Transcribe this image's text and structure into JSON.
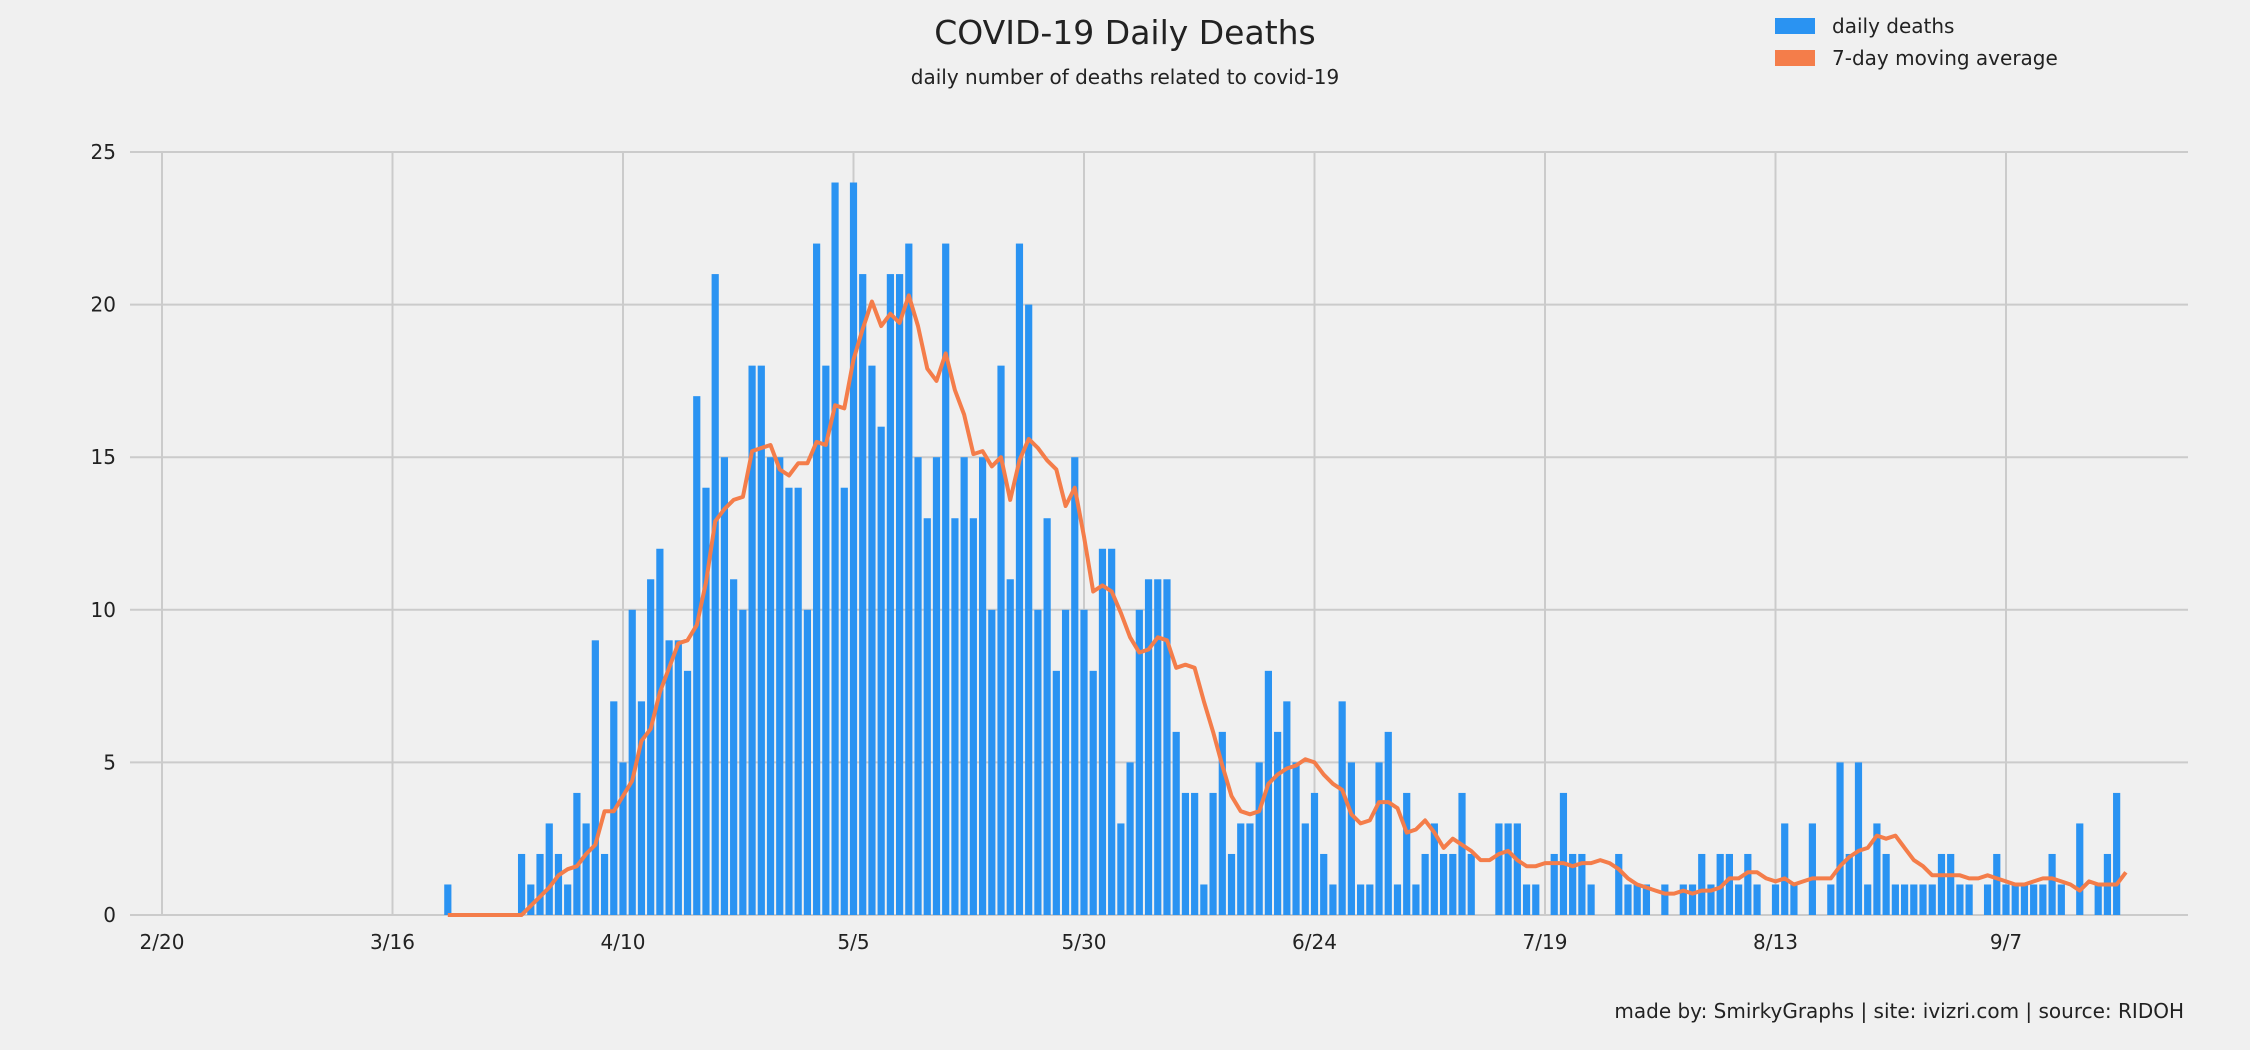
{
  "chart_data": {
    "type": "bar",
    "title": "COVID-19 Daily Deaths",
    "subtitle": "daily number of deaths related to covid-19",
    "xlabel": "",
    "ylabel": "",
    "x_start": "2/20",
    "x_tick_labels": [
      "2/20",
      "3/16",
      "4/10",
      "5/5",
      "5/30",
      "6/24",
      "7/19",
      "8/13",
      "9/7"
    ],
    "y_ticks": [
      0,
      5,
      10,
      15,
      20,
      25
    ],
    "ylim": [
      0,
      25
    ],
    "grid": true,
    "legend_position": "top-right",
    "series": [
      {
        "name": "daily deaths",
        "type": "bar",
        "color": "#2a93f2",
        "values": [
          0,
          0,
          0,
          0,
          0,
          0,
          0,
          0,
          0,
          0,
          0,
          0,
          0,
          0,
          0,
          0,
          0,
          0,
          0,
          0,
          0,
          0,
          0,
          0,
          0,
          0,
          0,
          0,
          0,
          0,
          0,
          1,
          0,
          0,
          0,
          0,
          0,
          0,
          0,
          2,
          1,
          2,
          3,
          2,
          1,
          4,
          3,
          9,
          2,
          7,
          5,
          10,
          7,
          11,
          12,
          9,
          9,
          8,
          17,
          14,
          21,
          15,
          11,
          10,
          18,
          18,
          15,
          15,
          14,
          14,
          10,
          22,
          18,
          24,
          14,
          24,
          21,
          18,
          16,
          21,
          21,
          22,
          15,
          13,
          15,
          22,
          13,
          15,
          13,
          15,
          10,
          18,
          11,
          22,
          20,
          10,
          13,
          8,
          10,
          15,
          10,
          8,
          12,
          12,
          3,
          5,
          10,
          11,
          11,
          11,
          6,
          4,
          4,
          1,
          4,
          6,
          2,
          3,
          3,
          5,
          8,
          6,
          7,
          5,
          3,
          4,
          2,
          1,
          7,
          5,
          1,
          1,
          5,
          6,
          1,
          4,
          1,
          2,
          3,
          2,
          2,
          4,
          2,
          0,
          0,
          3,
          3,
          3,
          1,
          1,
          0,
          2,
          4,
          2,
          2,
          1,
          0,
          0,
          2,
          1,
          1,
          1,
          0,
          1,
          0,
          1,
          1,
          2,
          1,
          2,
          2,
          1,
          2,
          1,
          0,
          1,
          3,
          1,
          0,
          3,
          0,
          1,
          5,
          2,
          5,
          1,
          3,
          2,
          1,
          1,
          1,
          1,
          1,
          2,
          2,
          1,
          1,
          0,
          1,
          2,
          1,
          1,
          1,
          1,
          1,
          2,
          1,
          0,
          3,
          0,
          1,
          2,
          4
        ]
      },
      {
        "name": "7-day moving average",
        "type": "line",
        "color": "#f47d4a",
        "values": [
          null,
          null,
          null,
          null,
          null,
          null,
          null,
          null,
          null,
          null,
          null,
          null,
          null,
          null,
          null,
          null,
          null,
          null,
          null,
          null,
          null,
          null,
          null,
          null,
          null,
          null,
          null,
          null,
          null,
          null,
          null,
          0,
          0,
          0,
          0,
          0,
          0,
          0,
          0,
          0,
          0.3,
          0.6,
          0.9,
          1.3,
          1.5,
          1.6,
          2,
          2.3,
          3.4,
          3.4,
          3.9,
          4.4,
          5.7,
          6.1,
          7.3,
          8.1,
          8.9,
          9,
          9.5,
          10.9,
          12.9,
          13.3,
          13.6,
          13.7,
          15.2,
          15.3,
          15.4,
          14.6,
          14.4,
          14.8,
          14.8,
          15.5,
          15.4,
          16.7,
          16.6,
          18.2,
          19.2,
          20.1,
          19.3,
          19.7,
          19.4,
          20.3,
          19.3,
          17.9,
          17.5,
          18.4,
          17.2,
          16.4,
          15.1,
          15.2,
          14.7,
          15,
          13.6,
          14.9,
          15.6,
          15.3,
          14.9,
          14.6,
          13.4,
          14,
          12.4,
          10.6,
          10.8,
          10.6,
          9.9,
          9.1,
          8.6,
          8.7,
          9.1,
          9,
          8.1,
          8.2,
          8.1,
          7,
          6,
          4.9,
          3.9,
          3.4,
          3.3,
          3.4,
          4.3,
          4.6,
          4.8,
          4.9,
          5.1,
          5,
          4.6,
          4.3,
          4.1,
          3.3,
          3,
          3.1,
          3.7,
          3.7,
          3.5,
          2.7,
          2.8,
          3.1,
          2.7,
          2.2,
          2.5,
          2.3,
          2.1,
          1.8,
          1.8,
          2,
          2.1,
          1.8,
          1.6,
          1.6,
          1.7,
          1.7,
          1.7,
          1.6,
          1.7,
          1.7,
          1.8,
          1.7,
          1.5,
          1.2,
          1,
          0.9,
          0.8,
          0.7,
          0.7,
          0.8,
          0.7,
          0.8,
          0.8,
          0.9,
          1.2,
          1.2,
          1.4,
          1.4,
          1.2,
          1.1,
          1.2,
          1,
          1.1,
          1.2,
          1.2,
          1.2,
          1.6,
          1.9,
          2.1,
          2.2,
          2.6,
          2.5,
          2.6,
          2.2,
          1.8,
          1.6,
          1.3,
          1.3,
          1.3,
          1.3,
          1.2,
          1.2,
          1.3,
          1.2,
          1.1,
          1,
          1,
          1.1,
          1.2,
          1.2,
          1.1,
          1,
          0.8,
          1.1,
          1,
          1,
          1,
          1.4
        ]
      }
    ]
  },
  "credits": "made by: SmirkyGraphs  |  site: ivizri.com  |  source: RIDOH"
}
